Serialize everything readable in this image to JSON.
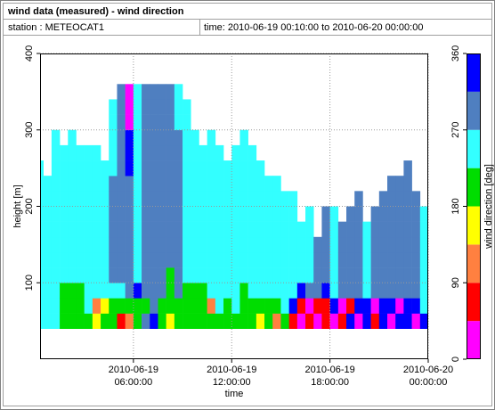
{
  "header": {
    "title": "wind data (measured) - wind direction",
    "station": "station : METEOCAT1",
    "time": "time: 2010-06-19 00:10:00 to 2010-06-20 00:00:00"
  },
  "chart_data": {
    "type": "heatmap",
    "xlabel": "time",
    "ylabel": "height [m]",
    "xlim": [
      0.3,
      24
    ],
    "ylim": [
      0,
      400
    ],
    "xticks": [
      {
        "value": 6,
        "label": "2010-06-19 06:00:00"
      },
      {
        "value": 12,
        "label": "2010-06-19 12:00:00"
      },
      {
        "value": 18,
        "label": "2010-06-19 18:00:00"
      },
      {
        "value": 24,
        "label": "2010-06-20 00:00:00"
      }
    ],
    "yticks": [
      100,
      200,
      300,
      400
    ],
    "grid": true,
    "colorscale": {
      "label": "wind direction [deg]",
      "levels": [
        0,
        45,
        90,
        135,
        180,
        225,
        270,
        315,
        360
      ],
      "colors": [
        "#ff00ff",
        "#ff0000",
        "#ff8040",
        "#ffff00",
        "#00dd00",
        "#33ffff",
        "#4f7fc0",
        "#0000ff"
      ],
      "ticks": [
        0,
        90,
        180,
        270,
        360
      ]
    },
    "x": [
      0.25,
      0.75,
      1.25,
      1.75,
      2.25,
      2.75,
      3.25,
      3.75,
      4.25,
      4.75,
      5.25,
      5.75,
      6.25,
      6.75,
      7.25,
      7.75,
      8.25,
      8.75,
      9.25,
      9.75,
      10.25,
      10.75,
      11.25,
      11.75,
      12.25,
      12.75,
      13.25,
      13.75,
      14.25,
      14.75,
      15.25,
      15.75,
      16.25,
      16.75,
      17.25,
      17.75,
      18.25,
      18.75,
      19.25,
      19.75,
      20.25,
      20.75,
      21.25,
      21.75,
      22.25,
      22.75,
      23.25,
      23.75
    ],
    "y": [
      50,
      70,
      90,
      110,
      130,
      150,
      170,
      190,
      210,
      230,
      250,
      270,
      290,
      310,
      330,
      350
    ],
    "values": [
      [
        250,
        250,
        250,
        250,
        250,
        250,
        250,
        250,
        250,
        250,
        250,
        null,
        null,
        null,
        null,
        null
      ],
      [
        250,
        250,
        250,
        250,
        250,
        250,
        250,
        250,
        250,
        250,
        null,
        null,
        null,
        null,
        null,
        null
      ],
      [
        250,
        250,
        250,
        250,
        250,
        250,
        250,
        250,
        250,
        250,
        250,
        250,
        250,
        null,
        null,
        null
      ],
      [
        200,
        200,
        200,
        250,
        250,
        250,
        250,
        250,
        250,
        250,
        250,
        250,
        null,
        null,
        null,
        null
      ],
      [
        200,
        200,
        200,
        250,
        250,
        250,
        250,
        250,
        250,
        250,
        250,
        250,
        250,
        null,
        null,
        null
      ],
      [
        200,
        200,
        200,
        250,
        250,
        250,
        250,
        250,
        250,
        250,
        250,
        250,
        null,
        null,
        null,
        null
      ],
      [
        200,
        250,
        250,
        250,
        250,
        250,
        250,
        250,
        250,
        250,
        250,
        250,
        null,
        null,
        null,
        null
      ],
      [
        160,
        110,
        250,
        250,
        250,
        250,
        250,
        250,
        250,
        250,
        250,
        250,
        null,
        null,
        null,
        null
      ],
      [
        200,
        160,
        250,
        250,
        250,
        250,
        250,
        250,
        250,
        250,
        250,
        null,
        null,
        null,
        null,
        null
      ],
      [
        200,
        200,
        250,
        290,
        290,
        290,
        290,
        290,
        290,
        290,
        250,
        250,
        250,
        250,
        250,
        null
      ],
      [
        70,
        200,
        250,
        290,
        290,
        290,
        290,
        290,
        290,
        290,
        290,
        290,
        290,
        290,
        290,
        290
      ],
      [
        110,
        200,
        290,
        290,
        290,
        290,
        290,
        290,
        290,
        290,
        340,
        340,
        340,
        20,
        20,
        20
      ],
      [
        200,
        200,
        340,
        250,
        250,
        250,
        250,
        250,
        250,
        250,
        250,
        250,
        250,
        250,
        250,
        250
      ],
      [
        290,
        200,
        290,
        290,
        290,
        290,
        290,
        290,
        290,
        290,
        290,
        290,
        290,
        290,
        290,
        290
      ],
      [
        340,
        290,
        290,
        290,
        290,
        290,
        290,
        290,
        290,
        290,
        290,
        290,
        290,
        290,
        290,
        290
      ],
      [
        200,
        200,
        290,
        290,
        290,
        290,
        290,
        290,
        290,
        290,
        290,
        290,
        290,
        290,
        290,
        290
      ],
      [
        160,
        200,
        200,
        200,
        290,
        290,
        290,
        290,
        290,
        290,
        290,
        290,
        290,
        290,
        290,
        290
      ],
      [
        200,
        200,
        290,
        290,
        290,
        290,
        290,
        290,
        290,
        290,
        290,
        290,
        290,
        250,
        250,
        250
      ],
      [
        200,
        200,
        200,
        250,
        250,
        250,
        250,
        250,
        250,
        250,
        250,
        250,
        250,
        250,
        250,
        null
      ],
      [
        200,
        200,
        200,
        250,
        250,
        250,
        250,
        250,
        250,
        250,
        250,
        250,
        250,
        null,
        null,
        null
      ],
      [
        200,
        200,
        200,
        250,
        250,
        250,
        250,
        250,
        250,
        250,
        250,
        250,
        null,
        null,
        null,
        null
      ],
      [
        200,
        110,
        250,
        250,
        250,
        250,
        250,
        250,
        250,
        250,
        250,
        250,
        250,
        null,
        null,
        null
      ],
      [
        200,
        250,
        250,
        250,
        250,
        250,
        250,
        250,
        250,
        250,
        250,
        250,
        null,
        null,
        null,
        null
      ],
      [
        200,
        200,
        250,
        250,
        250,
        250,
        250,
        250,
        250,
        250,
        250,
        null,
        null,
        null,
        null,
        null
      ],
      [
        200,
        250,
        250,
        250,
        250,
        250,
        250,
        250,
        250,
        250,
        250,
        250,
        null,
        null,
        null,
        null
      ],
      [
        200,
        200,
        200,
        250,
        250,
        250,
        250,
        250,
        250,
        250,
        250,
        250,
        250,
        null,
        null,
        null
      ],
      [
        200,
        200,
        250,
        250,
        250,
        250,
        250,
        250,
        250,
        250,
        250,
        250,
        null,
        null,
        null,
        null
      ],
      [
        160,
        200,
        250,
        250,
        250,
        250,
        250,
        250,
        250,
        250,
        250,
        null,
        null,
        null,
        null,
        null
      ],
      [
        200,
        200,
        250,
        250,
        250,
        250,
        250,
        250,
        250,
        250,
        null,
        null,
        null,
        null,
        null,
        null
      ],
      [
        110,
        200,
        250,
        250,
        250,
        250,
        250,
        250,
        250,
        250,
        null,
        null,
        null,
        null,
        null,
        null
      ],
      [
        200,
        250,
        250,
        250,
        250,
        250,
        250,
        250,
        250,
        null,
        null,
        null,
        null,
        null,
        null,
        null
      ],
      [
        70,
        340,
        250,
        250,
        250,
        250,
        250,
        250,
        250,
        null,
        null,
        null,
        null,
        null,
        null,
        null
      ],
      [
        20,
        70,
        340,
        250,
        250,
        250,
        250,
        null,
        null,
        null,
        null,
        null,
        null,
        null,
        null,
        null
      ],
      [
        70,
        20,
        290,
        250,
        250,
        250,
        250,
        250,
        null,
        null,
        null,
        null,
        null,
        null,
        null,
        null
      ],
      [
        20,
        70,
        290,
        290,
        290,
        290,
        null,
        null,
        null,
        null,
        null,
        null,
        null,
        null,
        null,
        null
      ],
      [
        70,
        70,
        340,
        290,
        290,
        290,
        290,
        290,
        null,
        null,
        null,
        null,
        null,
        null,
        null,
        null
      ],
      [
        20,
        340,
        250,
        250,
        250,
        250,
        250,
        250,
        null,
        null,
        null,
        null,
        null,
        null,
        null,
        null
      ],
      [
        70,
        20,
        290,
        290,
        290,
        290,
        290,
        null,
        null,
        null,
        null,
        null,
        null,
        null,
        null,
        null
      ],
      [
        340,
        70,
        290,
        290,
        290,
        290,
        290,
        290,
        null,
        null,
        null,
        null,
        null,
        null,
        null,
        null
      ],
      [
        20,
        340,
        290,
        290,
        290,
        290,
        290,
        290,
        290,
        null,
        null,
        null,
        null,
        null,
        null,
        null
      ],
      [
        340,
        340,
        250,
        250,
        250,
        250,
        250,
        null,
        null,
        null,
        null,
        null,
        null,
        null,
        null,
        null
      ],
      [
        70,
        20,
        290,
        290,
        290,
        290,
        290,
        290,
        null,
        null,
        null,
        null,
        null,
        null,
        null,
        null
      ],
      [
        340,
        340,
        290,
        290,
        290,
        290,
        290,
        290,
        290,
        null,
        null,
        null,
        null,
        null,
        null,
        null
      ],
      [
        20,
        340,
        290,
        290,
        290,
        290,
        290,
        290,
        290,
        290,
        null,
        null,
        null,
        null,
        null,
        null
      ],
      [
        340,
        20,
        290,
        290,
        290,
        290,
        290,
        290,
        290,
        290,
        null,
        null,
        null,
        null,
        null,
        null
      ],
      [
        340,
        340,
        290,
        290,
        290,
        290,
        290,
        290,
        290,
        290,
        290,
        null,
        null,
        null,
        null,
        null
      ],
      [
        20,
        340,
        290,
        290,
        290,
        290,
        290,
        290,
        290,
        null,
        null,
        null,
        null,
        null,
        null,
        null
      ],
      [
        340,
        250,
        250,
        250,
        250,
        250,
        250,
        250,
        null,
        null,
        null,
        null,
        null,
        null,
        null,
        null
      ]
    ]
  }
}
